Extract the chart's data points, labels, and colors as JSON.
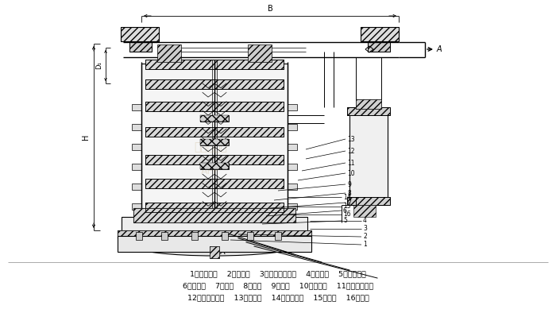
{
  "bg_color": "#ffffff",
  "line_color": "#1a1a1a",
  "label_line1": "1、进液接头    2、排气塞    3、检测执行机构    4、进液管    5、压盖螺钉",
  "label_line2": "6、冷凝器    7、弹笧    8、阀杆    9、阀芯    10、波纹管    11、压力调节盘",
  "label_line3": "12、注液口螺钉    13、取压管    14、阀前接管    15、阀盖    16、阀体",
  "dim_B": "B",
  "dim_A": "A",
  "dim_D1": "D₁",
  "dim_H": "H",
  "arrow_right": "A"
}
